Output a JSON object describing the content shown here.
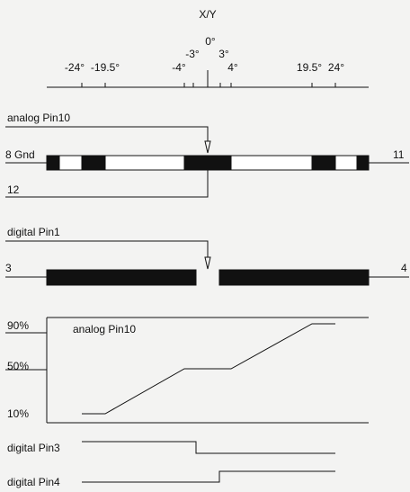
{
  "scale": {
    "title": "X/Y",
    "ticks": [
      "-24°",
      "-19.5°",
      "-4°",
      "-3°",
      "0°",
      "3°",
      "4°",
      "19.5°",
      "24°"
    ]
  },
  "analog_track": {
    "label": "analog Pin10",
    "left_label": "8 Gnd",
    "right_label": "11",
    "bottom_label": "12"
  },
  "digital_track": {
    "label": "digital Pin1",
    "left_label": "3",
    "right_label": "4"
  },
  "graph": {
    "title": "analog Pin10",
    "y_labels": [
      "90%",
      "50%",
      "10%"
    ],
    "curve_percent": [
      10,
      10,
      50,
      50,
      90,
      90
    ]
  },
  "signals": [
    {
      "label": "digital Pin3"
    },
    {
      "label": "digital Pin4"
    }
  ]
}
